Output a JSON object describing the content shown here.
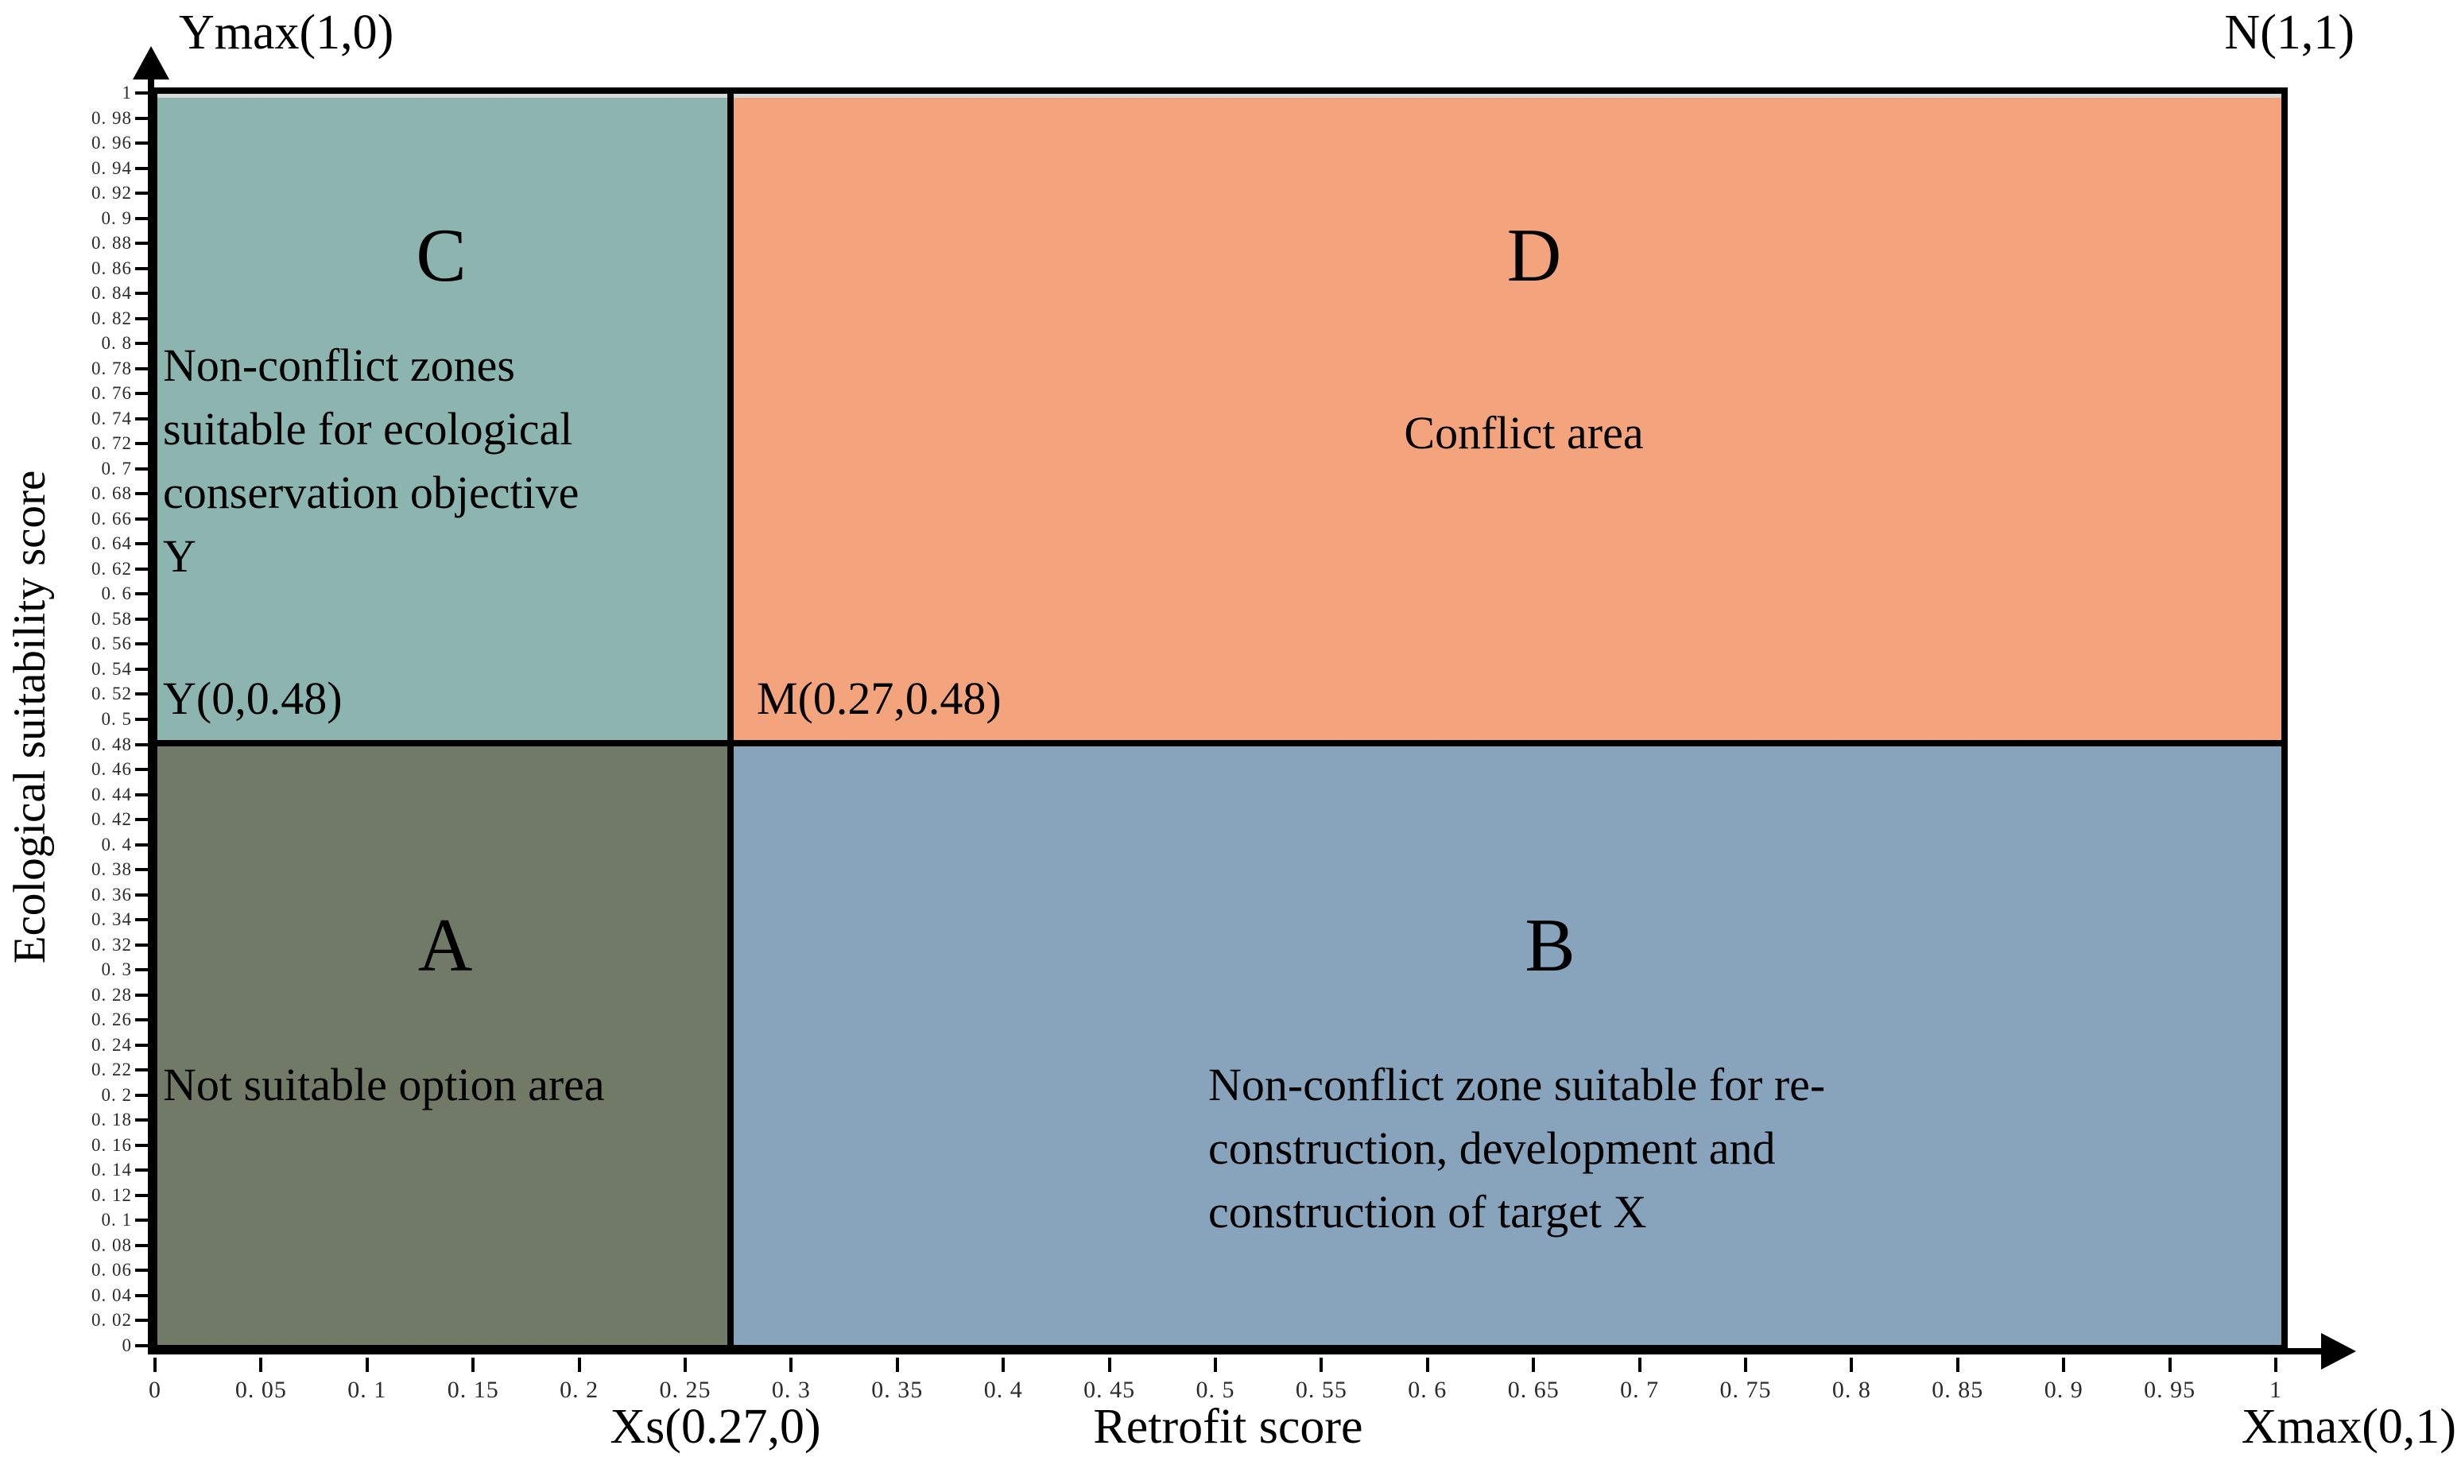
{
  "corner_labels": {
    "ymax": "Ymax(1,0)",
    "n": "N(1,1)",
    "xs": "Xs(0.27,0)",
    "xmax": "Xmax(0,1)"
  },
  "point_labels": {
    "y_point": "Y(0,0.48)",
    "m_point": "M(0.27,0.48)"
  },
  "axes": {
    "x": {
      "label": "Retrofit score",
      "tick_labels": [
        "0",
        "0. 05",
        "0. 1",
        "0. 15",
        "0. 2",
        "0. 25",
        "0. 3",
        "0. 35",
        "0. 4",
        "0. 45",
        "0. 5",
        "0. 55",
        "0. 6",
        "0. 65",
        "0. 7",
        "0. 75",
        "0. 8",
        "0. 85",
        "0. 9",
        "0. 95",
        "1"
      ]
    },
    "y": {
      "label": "Ecological suitability score",
      "tick_labels": [
        "1",
        "0. 98",
        "0. 96",
        "0. 94",
        "0. 92",
        "0. 9",
        "0. 88",
        "0. 86",
        "0. 84",
        "0. 82",
        "0. 8",
        "0. 78",
        "0. 76",
        "0. 74",
        "0. 72",
        "0. 7",
        "0. 68",
        "0. 66",
        "0. 64",
        "0. 62",
        "0. 6",
        "0. 58",
        "0. 56",
        "0. 54",
        "0. 52",
        "0. 5",
        "0. 48",
        "0. 46",
        "0. 44",
        "0. 42",
        "0. 4",
        "0. 38",
        "0. 36",
        "0. 34",
        "0. 32",
        "0. 3",
        "0. 28",
        "0. 26",
        "0. 24",
        "0. 22",
        "0. 2",
        "0. 18",
        "0. 16",
        "0. 14",
        "0. 12",
        "0. 1",
        "0. 08",
        "0. 06",
        "0. 04",
        "0. 02",
        "0"
      ]
    }
  },
  "quadrants": {
    "C": {
      "letter": "C",
      "color": "#8CB5AF",
      "lines": [
        "Non-conflict zones",
        "suitable for ecological",
        "conservation objective",
        "Y"
      ]
    },
    "D": {
      "letter": "D",
      "color": "#F4A47C",
      "lines": [
        "Conflict area"
      ]
    },
    "A": {
      "letter": "A",
      "color": "#707A66",
      "lines": [
        "Not suitable option area"
      ]
    },
    "B": {
      "letter": "B",
      "color": "#87A4BC",
      "lines": [
        "Non-conflict zone suitable for re-",
        "construction, development and",
        "construction of target X"
      ]
    }
  },
  "chart_data": {
    "type": "scatter",
    "title": "",
    "xlabel": "Retrofit score",
    "ylabel": "Ecological suitability score",
    "xlim": [
      0,
      1
    ],
    "ylim": [
      0,
      1
    ],
    "x_tick_step": 0.05,
    "y_tick_step": 0.02,
    "grid": false,
    "legend": false,
    "thresholds": {
      "x": 0.27,
      "y": 0.48
    },
    "points": [
      {
        "name": "Ymax",
        "label": "Ymax(1,0)",
        "x": 0,
        "y": 1
      },
      {
        "name": "N",
        "label": "N(1,1)",
        "x": 1,
        "y": 1
      },
      {
        "name": "Y",
        "label": "Y(0,0.48)",
        "x": 0,
        "y": 0.48
      },
      {
        "name": "M",
        "label": "M(0.27,0.48)",
        "x": 0.27,
        "y": 0.48
      },
      {
        "name": "Xs",
        "label": "Xs(0.27,0)",
        "x": 0.27,
        "y": 0
      },
      {
        "name": "Xmax",
        "label": "Xmax(0,1)",
        "x": 1,
        "y": 0
      }
    ],
    "regions": [
      {
        "id": "C",
        "x_range": [
          0,
          0.27
        ],
        "y_range": [
          0.48,
          1
        ],
        "color": "#8CB5AF",
        "label": "C",
        "description": "Non-conflict zones suitable for ecological conservation objective Y"
      },
      {
        "id": "D",
        "x_range": [
          0.27,
          1
        ],
        "y_range": [
          0.48,
          1
        ],
        "color": "#F4A47C",
        "label": "D",
        "description": "Conflict area"
      },
      {
        "id": "A",
        "x_range": [
          0,
          0.27
        ],
        "y_range": [
          0,
          0.48
        ],
        "color": "#707A66",
        "label": "A",
        "description": "Not suitable option area"
      },
      {
        "id": "B",
        "x_range": [
          0.27,
          1
        ],
        "y_range": [
          0,
          0.48
        ],
        "color": "#87A4BC",
        "label": "B",
        "description": "Non-conflict zone suitable for re-construction, development and construction of target X"
      }
    ]
  }
}
